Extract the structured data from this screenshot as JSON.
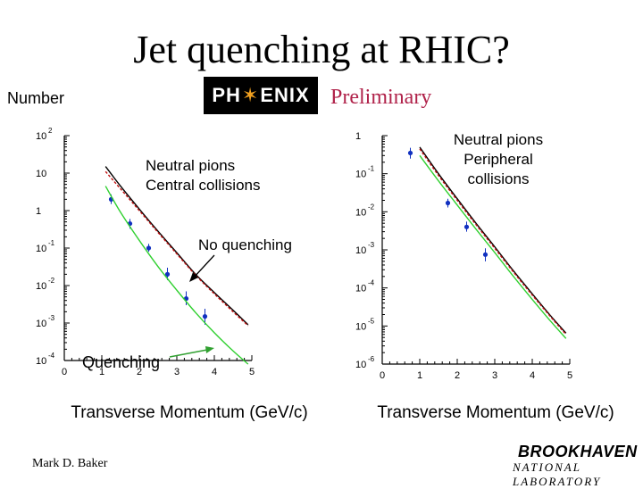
{
  "slide": {
    "title": "Jet quenching at RHIC?",
    "y_axis_label": "Number",
    "logo_text_left": "PH",
    "logo_text_right": "ENIX",
    "logo_star": "✶",
    "preliminary": "Preliminary",
    "author": "Mark D. Baker",
    "institution_top": "BROOKHAVEN",
    "institution_bottom": "NATIONAL LABORATORY"
  },
  "chart_data": [
    {
      "type": "scatter",
      "panel": "central",
      "title": "",
      "annotation_lines": [
        "Neutral pions",
        "Central collisions"
      ],
      "xlabel": "Transverse Momentum (GeV/c)",
      "ylabel": "Number",
      "xlim": [
        0,
        5
      ],
      "ylim": [
        0.0001,
        100
      ],
      "y_scale": "log",
      "x_ticks": [
        0,
        1,
        2,
        3,
        4,
        5
      ],
      "y_ticks": [
        {
          "value": 100,
          "base": "10",
          "exp": "2"
        },
        {
          "value": 10,
          "base": "10",
          "exp": ""
        },
        {
          "value": 1,
          "base": "1",
          "exp": ""
        },
        {
          "value": 0.1,
          "base": "10",
          "exp": "-1"
        },
        {
          "value": 0.01,
          "base": "10",
          "exp": "-2"
        },
        {
          "value": 0.001,
          "base": "10",
          "exp": "-3"
        },
        {
          "value": 0.0001,
          "base": "10",
          "exp": "-4"
        }
      ],
      "labels": {
        "no_quenching": "No quenching",
        "quenching": "Quenching"
      },
      "series": [
        {
          "kind": "points",
          "color": "#1030c0",
          "x": [
            1.25,
            1.75,
            2.25,
            2.75,
            3.25,
            3.75
          ],
          "y": [
            2.0,
            0.45,
            0.1,
            0.02,
            0.0045,
            0.0015
          ],
          "err_low": [
            1.5,
            0.33,
            0.08,
            0.014,
            0.003,
            0.0009
          ],
          "err_high": [
            2.7,
            0.6,
            0.13,
            0.03,
            0.007,
            0.0024
          ]
        },
        {
          "kind": "line",
          "color": "#000000",
          "x": [
            1.1,
            1.5,
            2.0,
            2.5,
            3.0,
            3.5,
            4.0,
            4.5,
            4.9
          ],
          "y": [
            15,
            4.5,
            1.1,
            0.28,
            0.075,
            0.02,
            0.0065,
            0.0022,
            0.0009
          ]
        },
        {
          "kind": "line",
          "color": "#c01010",
          "dashed": true,
          "x": [
            1.1,
            1.5,
            2.0,
            2.5,
            3.0,
            3.5,
            4.0,
            4.5,
            4.9
          ],
          "y": [
            11,
            3.8,
            1.0,
            0.26,
            0.07,
            0.019,
            0.006,
            0.002,
            0.00085
          ]
        },
        {
          "kind": "line",
          "color": "#30d030",
          "x": [
            1.1,
            1.5,
            2.0,
            2.5,
            3.0,
            3.5,
            4.0,
            4.5,
            4.9
          ],
          "y": [
            4.5,
            0.9,
            0.16,
            0.032,
            0.0075,
            0.0019,
            0.00055,
            0.00018,
            8e-05
          ]
        }
      ]
    },
    {
      "type": "scatter",
      "panel": "peripheral",
      "title": "",
      "annotation_lines": [
        "Neutral pions",
        "Peripheral",
        "collisions"
      ],
      "xlabel": "Transverse Momentum (GeV/c)",
      "xlim": [
        0,
        5
      ],
      "ylim": [
        1e-06,
        1
      ],
      "y_scale": "log",
      "x_ticks": [
        0,
        1,
        2,
        3,
        4,
        5
      ],
      "y_ticks": [
        {
          "value": 1,
          "base": "1",
          "exp": ""
        },
        {
          "value": 0.1,
          "base": "10",
          "exp": "-1"
        },
        {
          "value": 0.01,
          "base": "10",
          "exp": "-2"
        },
        {
          "value": 0.001,
          "base": "10",
          "exp": "-3"
        },
        {
          "value": 0.0001,
          "base": "10",
          "exp": "-4"
        },
        {
          "value": 1e-05,
          "base": "10",
          "exp": "-5"
        },
        {
          "value": 1e-06,
          "base": "10",
          "exp": "-6"
        }
      ],
      "series": [
        {
          "kind": "points",
          "color": "#1030c0",
          "x": [
            0.75,
            1.75,
            2.25,
            2.75
          ],
          "y": [
            0.35,
            0.017,
            0.004,
            0.00075
          ],
          "err_low": [
            0.25,
            0.013,
            0.003,
            0.0005
          ],
          "err_high": [
            0.48,
            0.022,
            0.0055,
            0.0011
          ]
        },
        {
          "kind": "line",
          "color": "#000000",
          "x": [
            1.0,
            1.5,
            2.0,
            2.5,
            3.0,
            3.5,
            4.0,
            4.5,
            4.9
          ],
          "y": [
            0.5,
            0.1,
            0.022,
            0.005,
            0.0012,
            0.00028,
            7e-05,
            1.8e-05,
            6.5e-06
          ]
        },
        {
          "kind": "line",
          "color": "#c01010",
          "dashed": true,
          "x": [
            1.0,
            1.5,
            2.0,
            2.5,
            3.0,
            3.5,
            4.0,
            4.5,
            4.9
          ],
          "y": [
            0.45,
            0.09,
            0.02,
            0.0046,
            0.0011,
            0.00026,
            6.5e-05,
            1.7e-05,
            6e-06
          ]
        },
        {
          "kind": "line",
          "color": "#30d030",
          "x": [
            1.0,
            1.5,
            2.0,
            2.5,
            3.0,
            3.5,
            4.0,
            4.5,
            4.9
          ],
          "y": [
            0.3,
            0.065,
            0.015,
            0.0035,
            0.00085,
            0.0002,
            5e-05,
            1.3e-05,
            4.7e-06
          ]
        }
      ]
    }
  ]
}
